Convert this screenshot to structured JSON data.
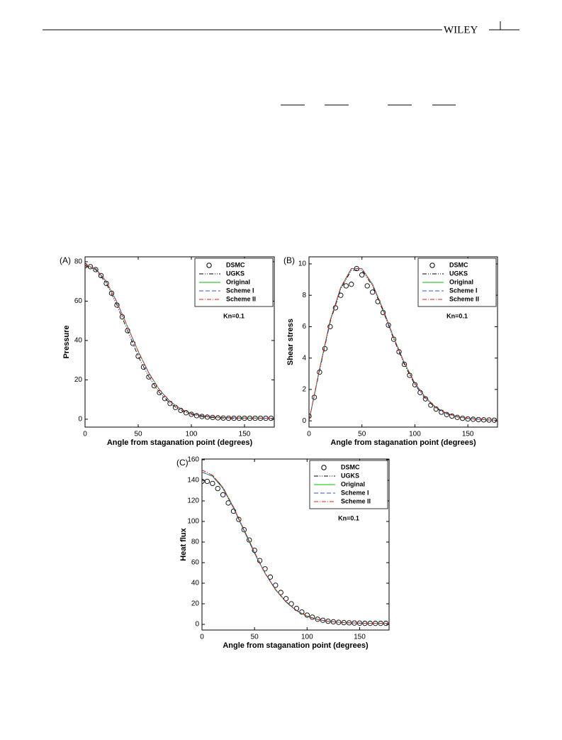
{
  "header": {
    "publisher": "WILEY"
  },
  "chart_data": [
    {
      "type": "line",
      "label": "(A)",
      "xlabel": "Angle from staganation point (degrees)",
      "ylabel": "Pressure",
      "annotation": "Kn=0.1",
      "legend": "upper right",
      "xlim": [
        0,
        178
      ],
      "xticks": [
        0,
        50,
        100,
        150
      ],
      "ylim": [
        -4,
        82.5
      ],
      "yticks": [
        0,
        20,
        40,
        60,
        80
      ],
      "series": [
        {
          "name": "DSMC",
          "color": "#000000",
          "marker": "circle",
          "x": [
            0,
            5,
            10,
            15,
            20,
            25,
            30,
            35,
            40,
            45,
            50,
            55,
            60,
            65,
            70,
            75,
            80,
            85,
            90,
            95,
            100,
            105,
            110,
            115,
            120,
            125,
            130,
            135,
            140,
            145,
            150,
            155,
            160,
            165,
            170,
            175,
            180
          ],
          "values": [
            78,
            77.5,
            76,
            73,
            69,
            64,
            58,
            52,
            45,
            38.5,
            32,
            26.5,
            21.5,
            17,
            13.5,
            10.5,
            8,
            6,
            4.5,
            3.3,
            2.5,
            1.8,
            1.4,
            1.1,
            0.9,
            0.7,
            0.6,
            0.5,
            0.5,
            0.5,
            0.5,
            0.5,
            0.5,
            0.5,
            0.5,
            0.5,
            0.5
          ]
        },
        {
          "name": "UGKS",
          "color": "#000000",
          "linestyle": "dashdotdot",
          "x": [
            0,
            10,
            20,
            30,
            40,
            50,
            60,
            70,
            80,
            90,
            100,
            110,
            120,
            130,
            140,
            150,
            160,
            170,
            180
          ],
          "values": [
            78,
            76,
            69,
            58,
            45,
            32,
            21.5,
            13.5,
            8,
            4.5,
            2.5,
            1.4,
            0.9,
            0.6,
            0.5,
            0.5,
            0.5,
            0.5,
            0.5
          ]
        },
        {
          "name": "Original",
          "color": "#00c000",
          "linestyle": "solid",
          "x": [
            0,
            10,
            20,
            30,
            40,
            50,
            60,
            70,
            80,
            90,
            100,
            110,
            120,
            130,
            140,
            150,
            160,
            170,
            180
          ],
          "values": [
            78.5,
            76.5,
            70,
            59.5,
            47,
            34.5,
            23.5,
            15,
            9,
            5.2,
            3,
            1.8,
            1.2,
            0.9,
            0.7,
            0.6,
            0.6,
            0.5,
            0.5
          ]
        },
        {
          "name": "Scheme I",
          "color": "#3050e0",
          "linestyle": "dashed",
          "x": [
            0,
            10,
            20,
            30,
            40,
            50,
            60,
            70,
            80,
            90,
            100,
            110,
            120,
            130,
            140,
            150,
            160,
            170,
            180
          ],
          "values": [
            78.5,
            76.5,
            70,
            59.5,
            47,
            34.5,
            23.5,
            15,
            9,
            5.2,
            3,
            1.8,
            1.2,
            0.9,
            0.7,
            0.6,
            0.6,
            0.5,
            0.5
          ]
        },
        {
          "name": "Scheme II",
          "color": "#e02020",
          "linestyle": "dashdot",
          "x": [
            0,
            10,
            20,
            30,
            40,
            50,
            60,
            70,
            80,
            90,
            100,
            110,
            120,
            130,
            140,
            150,
            160,
            170,
            180
          ],
          "values": [
            78.5,
            76.5,
            70,
            59.5,
            47,
            34.5,
            23.5,
            15,
            9,
            5.2,
            3,
            1.8,
            1.2,
            0.9,
            0.7,
            0.6,
            0.6,
            0.5,
            0.5
          ]
        }
      ]
    },
    {
      "type": "line",
      "label": "(B)",
      "xlabel": "Angle from staganation point (degrees)",
      "ylabel": "Shear stress",
      "annotation": "Kn=0.1",
      "legend": "upper right",
      "xlim": [
        0,
        178
      ],
      "xticks": [
        0,
        50,
        100,
        150
      ],
      "ylim": [
        -0.4,
        10.45
      ],
      "yticks": [
        0,
        2,
        4,
        6,
        8,
        10
      ],
      "series": [
        {
          "name": "DSMC",
          "color": "#000000",
          "marker": "circle",
          "x": [
            0,
            5,
            10,
            15,
            20,
            25,
            30,
            35,
            40,
            45,
            50,
            55,
            60,
            65,
            70,
            75,
            80,
            85,
            90,
            95,
            100,
            105,
            110,
            115,
            120,
            125,
            130,
            135,
            140,
            145,
            150,
            155,
            160,
            165,
            170,
            175,
            180
          ],
          "values": [
            0.3,
            1.5,
            3.1,
            4.6,
            6,
            7.2,
            8,
            8.6,
            8.7,
            9.7,
            9.3,
            8.6,
            8.2,
            7.6,
            6.9,
            6.1,
            5.2,
            4.4,
            3.6,
            2.9,
            2.3,
            1.8,
            1.4,
            1,
            0.75,
            0.55,
            0.4,
            0.3,
            0.22,
            0.16,
            0.12,
            0.1,
            0.08,
            0.06,
            0.05,
            0.04,
            0.03
          ]
        },
        {
          "name": "UGKS",
          "color": "#000000",
          "linestyle": "dashdotdot",
          "x": [
            0,
            10,
            20,
            30,
            40,
            50,
            60,
            70,
            80,
            90,
            100,
            110,
            120,
            130,
            140,
            150,
            160,
            170,
            180
          ],
          "values": [
            0,
            3.2,
            6.3,
            8.4,
            9.6,
            9.6,
            8.6,
            7,
            5.2,
            3.6,
            2.3,
            1.4,
            0.8,
            0.45,
            0.25,
            0.15,
            0.1,
            0.05,
            0.03
          ]
        },
        {
          "name": "Original",
          "color": "#00c000",
          "linestyle": "solid",
          "x": [
            0,
            10,
            20,
            30,
            40,
            50,
            60,
            70,
            80,
            90,
            100,
            110,
            120,
            130,
            140,
            150,
            160,
            170,
            180
          ],
          "values": [
            0,
            3.3,
            6.4,
            8.5,
            9.7,
            9.7,
            8.7,
            7.1,
            5.3,
            3.7,
            2.4,
            1.5,
            0.85,
            0.48,
            0.27,
            0.16,
            0.1,
            0.06,
            0.04
          ]
        },
        {
          "name": "Scheme I",
          "color": "#3050e0",
          "linestyle": "dashed",
          "x": [
            0,
            10,
            20,
            30,
            40,
            50,
            60,
            70,
            80,
            90,
            100,
            110,
            120,
            130,
            140,
            150,
            160,
            170,
            180
          ],
          "values": [
            0,
            3.3,
            6.4,
            8.5,
            9.7,
            9.7,
            8.7,
            7.1,
            5.3,
            3.7,
            2.4,
            1.5,
            0.85,
            0.48,
            0.27,
            0.16,
            0.1,
            0.06,
            0.04
          ]
        },
        {
          "name": "Scheme II",
          "color": "#e02020",
          "linestyle": "dashdot",
          "x": [
            0,
            10,
            20,
            30,
            40,
            50,
            60,
            70,
            80,
            90,
            100,
            110,
            120,
            130,
            140,
            150,
            160,
            170,
            180
          ],
          "values": [
            0,
            3.3,
            6.4,
            8.5,
            9.7,
            9.7,
            8.7,
            7.1,
            5.3,
            3.7,
            2.4,
            1.5,
            0.85,
            0.48,
            0.27,
            0.16,
            0.1,
            0.06,
            0.04
          ]
        }
      ]
    },
    {
      "type": "line",
      "label": "(C)",
      "xlabel": "Angle from staganation point (degrees)",
      "ylabel": "Heat flux",
      "annotation": "Kn=0.1",
      "legend": "upper right",
      "xlim": [
        0,
        178
      ],
      "xticks": [
        0,
        50,
        100,
        150
      ],
      "ylim": [
        -5.5,
        160.7
      ],
      "yticks": [
        0,
        20,
        40,
        60,
        80,
        100,
        120,
        140,
        160
      ],
      "series": [
        {
          "name": "DSMC",
          "color": "#000000",
          "marker": "circle",
          "x": [
            0,
            5,
            10,
            15,
            20,
            25,
            30,
            35,
            40,
            45,
            50,
            55,
            60,
            65,
            70,
            75,
            80,
            85,
            90,
            95,
            100,
            105,
            110,
            115,
            120,
            125,
            130,
            135,
            140,
            145,
            150,
            155,
            160,
            165,
            170,
            175,
            180
          ],
          "values": [
            139,
            139,
            137,
            132,
            126,
            118,
            110,
            102,
            92,
            82,
            72,
            62,
            54,
            46,
            38,
            31,
            25,
            20,
            15.5,
            12,
            9,
            7,
            5,
            4,
            3,
            2.5,
            2,
            1.7,
            1.5,
            1.3,
            1.2,
            1,
            1,
            1,
            1,
            1,
            1
          ]
        },
        {
          "name": "UGKS",
          "color": "#000000",
          "linestyle": "dashdotdot",
          "x": [
            0,
            10,
            20,
            30,
            40,
            50,
            60,
            70,
            80,
            90,
            100,
            110,
            120,
            130,
            140,
            150,
            160,
            170,
            180
          ],
          "values": [
            150,
            145,
            133,
            114,
            92,
            70,
            50,
            34,
            22,
            13.5,
            8,
            4.8,
            3,
            2,
            1.5,
            1.2,
            1,
            1,
            1
          ]
        },
        {
          "name": "Original",
          "color": "#00c000",
          "linestyle": "solid",
          "x": [
            0,
            10,
            20,
            30,
            40,
            50,
            60,
            70,
            80,
            90,
            100,
            110,
            120,
            130,
            140,
            150,
            160,
            170,
            180
          ],
          "values": [
            148,
            144,
            132,
            113,
            91,
            69,
            49.5,
            33.5,
            21.5,
            13.2,
            7.8,
            4.7,
            3,
            2,
            1.5,
            1.2,
            1,
            1,
            1
          ]
        },
        {
          "name": "Scheme I",
          "color": "#3050e0",
          "linestyle": "dashed",
          "x": [
            0,
            10,
            20,
            30,
            40,
            50,
            60,
            70,
            80,
            90,
            100,
            110,
            120,
            130,
            140,
            150,
            160,
            170,
            180
          ],
          "values": [
            148,
            144,
            132,
            113,
            91,
            69,
            49.5,
            33.5,
            21.5,
            13.2,
            7.8,
            4.7,
            3,
            2,
            1.5,
            1.2,
            1,
            1,
            1
          ]
        },
        {
          "name": "Scheme II",
          "color": "#e02020",
          "linestyle": "dashdot",
          "x": [
            0,
            10,
            20,
            30,
            40,
            50,
            60,
            70,
            80,
            90,
            100,
            110,
            120,
            130,
            140,
            150,
            160,
            170,
            180
          ],
          "values": [
            150,
            145,
            133,
            114,
            92,
            70,
            50,
            34,
            22,
            13.5,
            8,
            4.8,
            3,
            2,
            1.5,
            1.2,
            1,
            1,
            1
          ]
        }
      ]
    }
  ]
}
